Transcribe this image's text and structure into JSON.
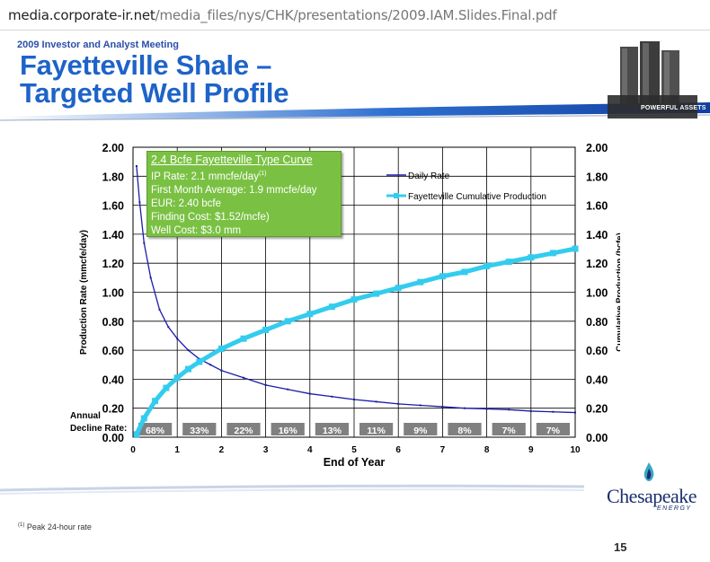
{
  "browser": {
    "url_host": "media.corporate-ir.net",
    "url_path": "/media_files/nys/CHK/presentations/2009.IAM.Slides.Final.pdf"
  },
  "slide": {
    "kicker": "2009 Investor and Analyst Meeting",
    "title_line1": "Fayetteville Shale –",
    "title_line2": "Targeted Well Profile",
    "powerful_assets": "POWERFUL ASSETS",
    "company": "Chesapeake",
    "company_sub": "ENERGY",
    "footnote_marker": "(1)",
    "footnote": "Peak 24-hour rate",
    "page_number": "15"
  },
  "type_curve_box": {
    "title": "2.4 Bcfe Fayetteville Type Curve",
    "ip_rate": "IP Rate: 2.1 mmcfe/day",
    "ip_marker": "(1)",
    "first_month": "First Month Average: 1.9 mmcfe/day",
    "eur": "EUR:  2.40 bcfe",
    "finding_cost": "Finding Cost:  $1.52/mcfe)",
    "well_cost": "Well Cost:  $3.0 mm"
  },
  "colors": {
    "daily_rate": "#1c1ca8",
    "cumulative": "#33ccee",
    "decline_bar": "#808080",
    "typebox_bg": "#7ac143"
  },
  "chart_data": {
    "type": "line",
    "xlabel": "End of Year",
    "ylabel": "Production Rate (mmcfe/day)",
    "y2label": "Cumulative Production (bcfe)",
    "xlim": [
      0,
      10
    ],
    "ylim": [
      0,
      2
    ],
    "y2lim": [
      0,
      2
    ],
    "x_ticks": [
      "0",
      "1",
      "2",
      "3",
      "4",
      "5",
      "6",
      "7",
      "8",
      "9",
      "10"
    ],
    "y_ticks": [
      "0.00",
      "0.20",
      "0.40",
      "0.60",
      "0.80",
      "1.00",
      "1.20",
      "1.40",
      "1.60",
      "1.80",
      "2.00"
    ],
    "y2_ticks": [
      "0.00",
      "0.20",
      "0.40",
      "0.60",
      "0.80",
      "1.00",
      "1.20",
      "1.40",
      "1.60",
      "1.80",
      "2.00"
    ],
    "grid": true,
    "legend_position": "top-right",
    "series": [
      {
        "name": "Daily Rate",
        "axis": "left",
        "x": [
          0.08,
          0.15,
          0.25,
          0.4,
          0.6,
          0.8,
          1.0,
          1.25,
          1.5,
          1.75,
          2.0,
          2.5,
          3.0,
          3.5,
          4.0,
          4.5,
          5.0,
          5.5,
          6.0,
          6.5,
          7.0,
          7.5,
          8.0,
          8.5,
          9.0,
          9.5,
          10.0
        ],
        "y": [
          1.87,
          1.62,
          1.34,
          1.1,
          0.88,
          0.76,
          0.68,
          0.6,
          0.54,
          0.5,
          0.46,
          0.41,
          0.36,
          0.33,
          0.3,
          0.28,
          0.26,
          0.245,
          0.23,
          0.22,
          0.21,
          0.2,
          0.195,
          0.19,
          0.18,
          0.175,
          0.17
        ]
      },
      {
        "name": "Fayetteville Cumulative Production",
        "axis": "right",
        "x": [
          0.08,
          0.25,
          0.5,
          0.75,
          1.0,
          1.25,
          1.5,
          2.0,
          2.5,
          3.0,
          3.5,
          4.0,
          4.5,
          5.0,
          5.5,
          6.0,
          6.5,
          7.0,
          7.5,
          8.0,
          8.5,
          9.0,
          9.5,
          10.0
        ],
        "y": [
          0.02,
          0.13,
          0.25,
          0.34,
          0.41,
          0.47,
          0.52,
          0.61,
          0.68,
          0.74,
          0.8,
          0.85,
          0.9,
          0.95,
          0.99,
          1.03,
          1.07,
          1.11,
          1.14,
          1.18,
          1.21,
          1.24,
          1.27,
          1.3
        ]
      }
    ],
    "annual_decline_label_1": "Annual",
    "annual_decline_label_2": "Decline Rate:",
    "annual_decline": [
      "68%",
      "33%",
      "22%",
      "16%",
      "13%",
      "11%",
      "9%",
      "8%",
      "7%",
      "7%"
    ]
  }
}
